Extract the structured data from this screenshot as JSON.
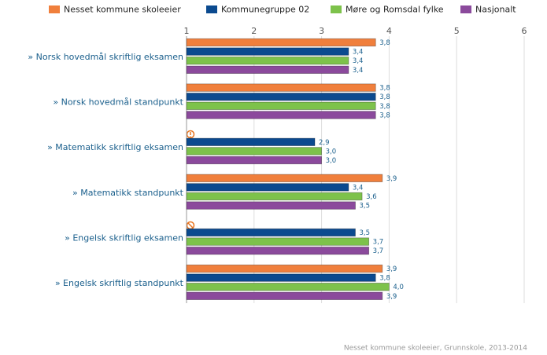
{
  "chart_data": {
    "type": "bar",
    "orientation": "horizontal",
    "categories": [
      "» Norsk hovedmål skriftlig eksamen",
      "» Norsk hovedmål standpunkt",
      "» Matematikk skriftlig eksamen",
      "» Matematikk standpunkt",
      "» Engelsk skriftlig eksamen",
      "» Engelsk skriftlig standpunkt"
    ],
    "series": [
      {
        "name": "Nesset kommune skoleeier",
        "color": "#f07f3c",
        "values": [
          3.8,
          3.8,
          null,
          3.9,
          null,
          3.9
        ],
        "value_labels": [
          "3,8",
          "3,8",
          null,
          "3,9",
          null,
          "3,9"
        ]
      },
      {
        "name": "Kommunegruppe 02",
        "color": "#0b4a8f",
        "values": [
          3.4,
          3.8,
          2.9,
          3.4,
          3.5,
          3.8
        ],
        "value_labels": [
          "3,4",
          "3,8",
          "2,9",
          "3,4",
          "3,5",
          "3,8"
        ]
      },
      {
        "name": "Møre og Romsdal fylke",
        "color": "#7dc24b",
        "values": [
          3.4,
          3.8,
          3.0,
          3.6,
          3.7,
          4.0
        ],
        "value_labels": [
          "3,4",
          "3,8",
          "3,0",
          "3,6",
          "3,7",
          "4,0"
        ]
      },
      {
        "name": "Nasjonalt",
        "color": "#8b4a9c",
        "values": [
          3.4,
          3.8,
          3.0,
          3.5,
          3.7,
          3.9
        ],
        "value_labels": [
          "3,4",
          "3,8",
          "3,0",
          "3,5",
          "3,7",
          "3,9"
        ]
      }
    ],
    "xlim": [
      1,
      6
    ],
    "xticks": [
      1,
      2,
      3,
      4,
      5,
      6
    ],
    "grid": true,
    "caption": "Nesset kommune skoleeier, Grunnskole, 2013-2014"
  }
}
